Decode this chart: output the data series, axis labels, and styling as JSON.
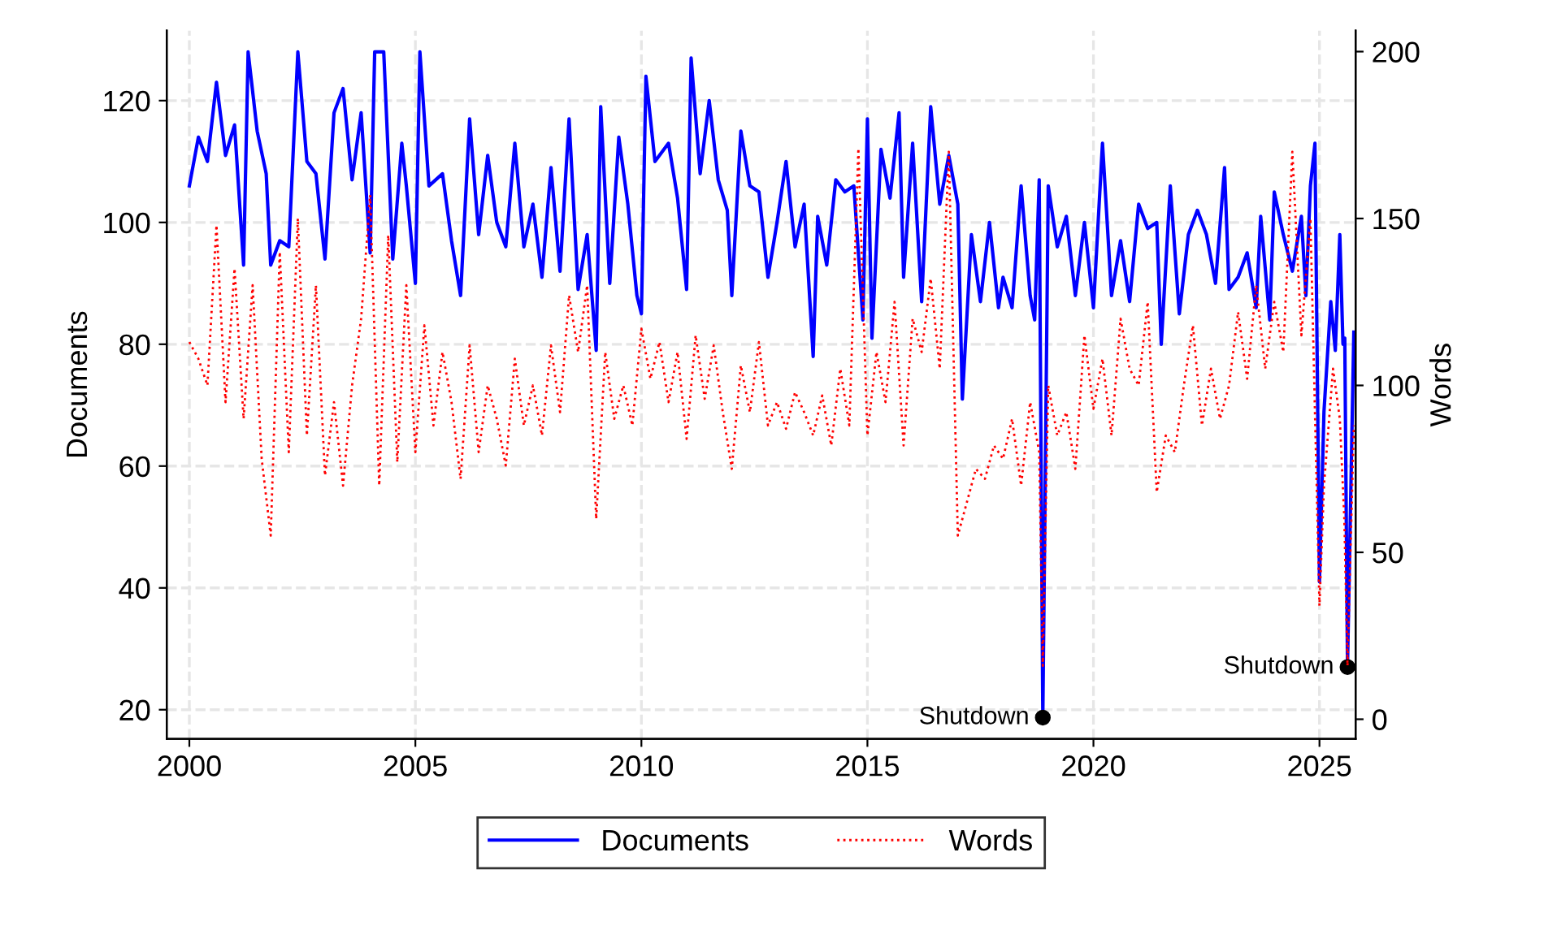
{
  "chart_data": {
    "type": "line",
    "xlabel": null,
    "ylabel": "Documents",
    "y2label": "Words",
    "xlim": [
      1999.5,
      2025.8
    ],
    "xticks": [
      2000,
      2005,
      2010,
      2015,
      2020,
      2025
    ],
    "ylim": [
      15.2,
      131.5
    ],
    "yticks": [
      20,
      40,
      60,
      80,
      100,
      120
    ],
    "y2lim": [
      -5.9,
      206.3
    ],
    "y2ticks": [
      0,
      50,
      100,
      150,
      200
    ],
    "grid": true,
    "legend": "bottom",
    "annotations": [
      {
        "text": "Shutdown",
        "x": 2018.88,
        "y": 18.7
      },
      {
        "text": "Shutdown",
        "x": 2025.62,
        "y": 27
      }
    ],
    "series": [
      {
        "name": "Documents",
        "color": "#0000ff",
        "line_style": "solid",
        "x": [
          2000.0,
          2000.2,
          2000.4,
          2000.6,
          2000.8,
          2001.0,
          2001.2,
          2001.3,
          2001.5,
          2001.7,
          2001.8,
          2002.0,
          2002.2,
          2002.4,
          2002.6,
          2002.8,
          2003.0,
          2003.2,
          2003.4,
          2003.6,
          2003.8,
          2004.0,
          2004.1,
          2004.3,
          2004.5,
          2004.7,
          2004.8,
          2005.0,
          2005.1,
          2005.3,
          2005.6,
          2005.8,
          2006.0,
          2006.2,
          2006.4,
          2006.6,
          2006.8,
          2007.0,
          2007.2,
          2007.4,
          2007.6,
          2007.8,
          2008.0,
          2008.2,
          2008.4,
          2008.6,
          2008.8,
          2009.0,
          2009.1,
          2009.3,
          2009.5,
          2009.7,
          2009.9,
          2010.0,
          2010.1,
          2010.3,
          2010.6,
          2010.8,
          2011.0,
          2011.1,
          2011.3,
          2011.5,
          2011.7,
          2011.9,
          2012.0,
          2012.2,
          2012.4,
          2012.6,
          2012.8,
          2013.0,
          2013.2,
          2013.4,
          2013.6,
          2013.8,
          2013.9,
          2014.1,
          2014.3,
          2014.5,
          2014.7,
          2014.9,
          2015.0,
          2015.1,
          2015.3,
          2015.5,
          2015.7,
          2015.8,
          2016.0,
          2016.2,
          2016.4,
          2016.6,
          2016.8,
          2017.0,
          2017.1,
          2017.3,
          2017.5,
          2017.7,
          2017.9,
          2018.0,
          2018.2,
          2018.4,
          2018.6,
          2018.7,
          2018.8,
          2018.88,
          2019.0,
          2019.2,
          2019.4,
          2019.6,
          2019.8,
          2020.0,
          2020.2,
          2020.4,
          2020.6,
          2020.8,
          2021.0,
          2021.2,
          2021.4,
          2021.5,
          2021.7,
          2021.9,
          2022.1,
          2022.3,
          2022.5,
          2022.7,
          2022.9,
          2023.0,
          2023.2,
          2023.4,
          2023.6,
          2023.7,
          2023.9,
          2024.0,
          2024.2,
          2024.4,
          2024.6,
          2024.7,
          2024.8,
          2024.9,
          2025.0,
          2025.1,
          2025.25,
          2025.35,
          2025.45,
          2025.52,
          2025.56,
          2025.62,
          2025.76
        ],
        "values": [
          106,
          114,
          110,
          123,
          111,
          116,
          93,
          128,
          115,
          108,
          93,
          97,
          96,
          128,
          110,
          108,
          94,
          118,
          122,
          107,
          118,
          95,
          128,
          128,
          94,
          113,
          106,
          90,
          128,
          106,
          108,
          97,
          88,
          117,
          98,
          111,
          100,
          96,
          113,
          96,
          103,
          91,
          109,
          92,
          117,
          89,
          98,
          79,
          119,
          90,
          114,
          103,
          88,
          85,
          124,
          110,
          113,
          104,
          89,
          127,
          108,
          120,
          107,
          102,
          88,
          115,
          106,
          105,
          91,
          100,
          110,
          96,
          103,
          78,
          101,
          93,
          107,
          105,
          106,
          84,
          117,
          81,
          112,
          104,
          118,
          91,
          113,
          87,
          119,
          103,
          111,
          103,
          71,
          98,
          87,
          100,
          86,
          91,
          86,
          106,
          88,
          84,
          107,
          18.7,
          106,
          96,
          101,
          88,
          100,
          86,
          113,
          88,
          97,
          87,
          103,
          99,
          100,
          80,
          106,
          85,
          98,
          102,
          98,
          90,
          109,
          89,
          91,
          95,
          86,
          101,
          84,
          105,
          98,
          92,
          101,
          88,
          106,
          113,
          41,
          69,
          87,
          79,
          98,
          80,
          81,
          27,
          82
        ]
      },
      {
        "name": "Words",
        "color": "#ff0000",
        "line_style": "dotted",
        "axis": "y2",
        "x": [
          2000.0,
          2000.2,
          2000.4,
          2000.6,
          2000.8,
          2001.0,
          2001.2,
          2001.4,
          2001.6,
          2001.8,
          2002.0,
          2002.2,
          2002.4,
          2002.6,
          2002.8,
          2003.0,
          2003.2,
          2003.4,
          2003.6,
          2003.8,
          2004.0,
          2004.2,
          2004.4,
          2004.6,
          2004.8,
          2005.0,
          2005.2,
          2005.4,
          2005.6,
          2005.8,
          2006.0,
          2006.2,
          2006.4,
          2006.6,
          2006.8,
          2007.0,
          2007.2,
          2007.4,
          2007.6,
          2007.8,
          2008.0,
          2008.2,
          2008.4,
          2008.6,
          2008.8,
          2009.0,
          2009.2,
          2009.4,
          2009.6,
          2009.8,
          2010.0,
          2010.2,
          2010.4,
          2010.6,
          2010.8,
          2011.0,
          2011.2,
          2011.4,
          2011.6,
          2011.8,
          2012.0,
          2012.2,
          2012.4,
          2012.6,
          2012.8,
          2013.0,
          2013.2,
          2013.4,
          2013.6,
          2013.8,
          2014.0,
          2014.2,
          2014.4,
          2014.6,
          2014.8,
          2015.0,
          2015.2,
          2015.4,
          2015.6,
          2015.8,
          2016.0,
          2016.2,
          2016.4,
          2016.6,
          2016.8,
          2017.0,
          2017.2,
          2017.4,
          2017.6,
          2017.8,
          2018.0,
          2018.2,
          2018.4,
          2018.6,
          2018.8,
          2018.88,
          2019.0,
          2019.2,
          2019.4,
          2019.6,
          2019.8,
          2020.0,
          2020.2,
          2020.4,
          2020.6,
          2020.8,
          2021.0,
          2021.2,
          2021.4,
          2021.6,
          2021.8,
          2022.0,
          2022.2,
          2022.4,
          2022.6,
          2022.8,
          2023.0,
          2023.2,
          2023.4,
          2023.6,
          2023.8,
          2024.0,
          2024.2,
          2024.4,
          2024.6,
          2024.8,
          2025.0,
          2025.1,
          2025.3,
          2025.45,
          2025.55,
          2025.62,
          2025.76
        ],
        "values": [
          113,
          108,
          100,
          148,
          95,
          135,
          90,
          130,
          78,
          55,
          140,
          80,
          150,
          85,
          130,
          73,
          95,
          70,
          100,
          120,
          157,
          70,
          145,
          77,
          130,
          80,
          118,
          88,
          110,
          95,
          72,
          112,
          80,
          100,
          90,
          76,
          108,
          88,
          100,
          85,
          112,
          92,
          127,
          110,
          130,
          60,
          110,
          90,
          100,
          88,
          117,
          102,
          113,
          95,
          110,
          84,
          115,
          96,
          112,
          92,
          75,
          106,
          92,
          113,
          88,
          95,
          87,
          98,
          92,
          85,
          97,
          82,
          105,
          88,
          171,
          85,
          110,
          95,
          125,
          82,
          120,
          110,
          132,
          105,
          170,
          55,
          65,
          75,
          72,
          82,
          78,
          90,
          70,
          95,
          80,
          16,
          100,
          85,
          92,
          75,
          115,
          93,
          108,
          85,
          120,
          105,
          100,
          125,
          68,
          85,
          80,
          100,
          118,
          88,
          105,
          90,
          100,
          122,
          102,
          130,
          105,
          125,
          110,
          170,
          115,
          150,
          34,
          70,
          105,
          90,
          60,
          16,
          88
        ]
      }
    ]
  }
}
